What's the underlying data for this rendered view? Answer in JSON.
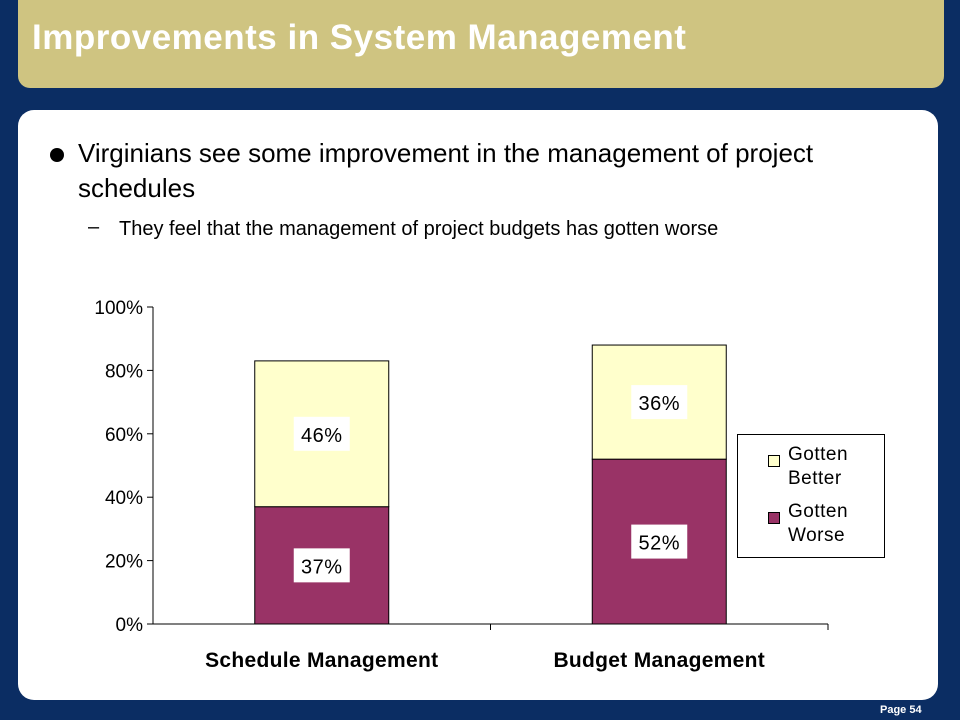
{
  "title": "Improvements in System Management",
  "bullet": "Virginians see some improvement in the management of project schedules",
  "sub_dash": "–",
  "sub_bullet": "They feel that the management of project budgets has gotten worse",
  "page": "Page 54",
  "colors": {
    "background": "#0b2d63",
    "title_bar": "#cfc481",
    "gotten_better": "#ffffcc",
    "gotten_worse": "#993366"
  },
  "chart_data": {
    "type": "bar",
    "stacked": true,
    "categories": [
      "Schedule Management",
      "Budget Management"
    ],
    "series": [
      {
        "name": "Gotten Worse",
        "values": [
          37,
          52
        ],
        "labels": [
          "37%",
          "52%"
        ],
        "color": "#993366"
      },
      {
        "name": "Gotten Better",
        "values": [
          46,
          36
        ],
        "labels": [
          "46%",
          "36%"
        ],
        "color": "#ffffcc"
      }
    ],
    "ylim": [
      0,
      100
    ],
    "yticks": [
      0,
      20,
      40,
      60,
      80,
      100
    ],
    "ytick_labels": [
      "0%",
      "20%",
      "40%",
      "60%",
      "80%",
      "100%"
    ],
    "title": "",
    "xlabel": "",
    "ylabel": "",
    "legend": {
      "position": "right",
      "order": [
        "Gotten Better",
        "Gotten Worse"
      ],
      "lines": [
        [
          "Gotten",
          "Better"
        ],
        [
          "Gotten",
          "Worse"
        ]
      ]
    },
    "grid": false
  }
}
